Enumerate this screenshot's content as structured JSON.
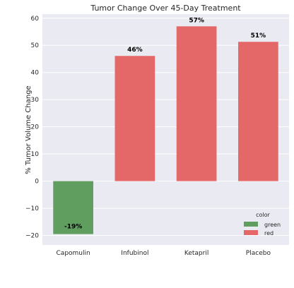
{
  "chart_data": {
    "type": "bar",
    "title": "Tumor Change Over 45-Day Treatment",
    "xlabel": "",
    "ylabel": "% Tumor Volume Change",
    "categories": [
      "Capomulin",
      "Infubinol",
      "Ketapril",
      "Placebo"
    ],
    "values": [
      -19.5,
      46.1,
      57.0,
      51.3
    ],
    "data_labels": [
      "-19%",
      "46%",
      "57%",
      "51%"
    ],
    "bar_color_keys": [
      "green",
      "red",
      "red",
      "red"
    ],
    "ylim": [
      -23.5,
      61.5
    ],
    "yticks": [
      -20,
      -10,
      0,
      10,
      20,
      30,
      40,
      50,
      60
    ],
    "ytick_labels": [
      "−20",
      "−10",
      "0",
      "10",
      "20",
      "30",
      "40",
      "50",
      "60"
    ],
    "grid": true,
    "legend": {
      "title": "color",
      "position": "lower-right",
      "entries": [
        {
          "label": "green",
          "color": "#5f9e5f"
        },
        {
          "label": "red",
          "color": "#e56869"
        }
      ]
    },
    "colors": {
      "green": "#5f9e5f",
      "red": "#e56869",
      "background": "#eaeaf2",
      "grid": "#ffffff"
    }
  }
}
